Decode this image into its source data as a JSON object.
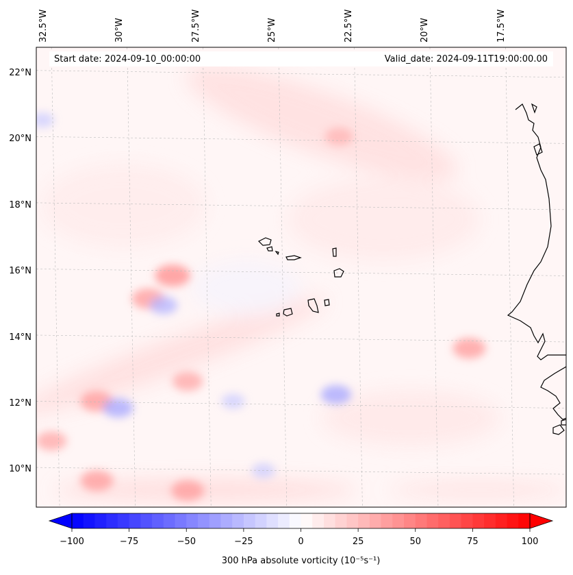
{
  "map": {
    "start_label": "Start date: 2024-09-10_00:00:00",
    "valid_label": "Valid_date: 2024-09-11T19:00:00.00",
    "lon_labels": [
      "32.5°W",
      "30°W",
      "27.5°W",
      "25°W",
      "22.5°W",
      "20°W",
      "17.5°W"
    ],
    "lat_labels": [
      "22°N",
      "20°N",
      "18°N",
      "16°N",
      "14°N",
      "12°N",
      "10°N"
    ],
    "extent": {
      "lon_min": -33.0,
      "lon_max": -15.5,
      "lat_min": 8.8,
      "lat_max": 22.7
    },
    "coastline_color": "#000000",
    "gridline_color": "#bbbbbb",
    "vorticity_features": [
      {
        "lon": -28.5,
        "lat": 15.8,
        "value": 45
      },
      {
        "lon": -29.3,
        "lat": 15.1,
        "value": 40
      },
      {
        "lon": -28.8,
        "lat": 14.9,
        "value": -30
      },
      {
        "lon": -23.0,
        "lat": 20.0,
        "value": 30
      },
      {
        "lon": -31.0,
        "lat": 12.0,
        "value": 40
      },
      {
        "lon": -30.3,
        "lat": 11.8,
        "value": -35
      },
      {
        "lon": -28.0,
        "lat": 12.6,
        "value": 35
      },
      {
        "lon": -23.1,
        "lat": 12.2,
        "value": -35
      },
      {
        "lon": -26.5,
        "lat": 12.0,
        "value": -20
      },
      {
        "lon": -18.7,
        "lat": 13.6,
        "value": 40
      },
      {
        "lon": -31.0,
        "lat": 9.6,
        "value": 40
      },
      {
        "lon": -28.0,
        "lat": 9.3,
        "value": 40
      },
      {
        "lon": -32.5,
        "lat": 10.8,
        "value": 35
      },
      {
        "lon": -32.8,
        "lat": 20.5,
        "value": -20
      },
      {
        "lon": -25.5,
        "lat": 9.9,
        "value": -20
      }
    ]
  },
  "colorbar": {
    "label": "300 hPa absolute vorticity (10⁻⁵s⁻¹)",
    "ticks": [
      "−100",
      "−75",
      "−50",
      "−25",
      "0",
      "25",
      "50",
      "75",
      "100"
    ],
    "min": -100,
    "max": 100,
    "step": 5,
    "colormap": "bwr",
    "low_color": "#0000ff",
    "mid_color": "#ffffff",
    "high_color": "#ff0000"
  }
}
